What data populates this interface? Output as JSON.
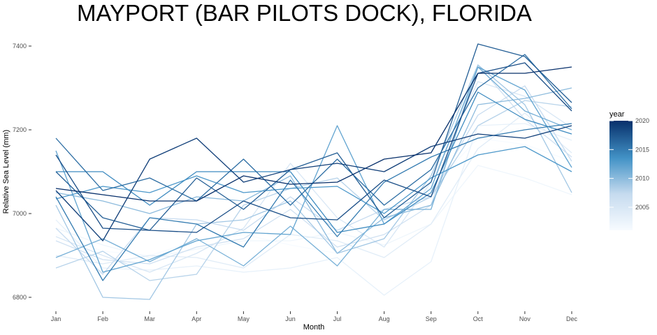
{
  "chart_data": {
    "type": "line",
    "title": "MAYPORT (BAR PILOTS DOCK), FLORIDA",
    "xlabel": "Month",
    "ylabel": "Relative Sea Level (mm)",
    "categories": [
      "Jan",
      "Feb",
      "Mar",
      "Apr",
      "May",
      "Jun",
      "Jul",
      "Aug",
      "Sep",
      "Oct",
      "Nov",
      "Dec"
    ],
    "ylim": [
      6790,
      7415
    ],
    "yticks": [
      6800,
      7000,
      7200,
      7400
    ],
    "grid": false,
    "legend": {
      "title": "year",
      "placement": "right",
      "type": "colorbar",
      "range": [
        2001,
        2020
      ],
      "ticks": [
        2005,
        2010,
        2015,
        2020
      ],
      "low_color": "#f7fbff",
      "high_color": "#08306b"
    },
    "series": [
      {
        "year": 2001,
        "values": [
          6950,
          6910,
          6900,
          6935,
          6950,
          6925,
          6905,
          6985,
          7060,
          7180,
          7165,
          7125
        ]
      },
      {
        "year": 2002,
        "values": [
          6965,
          6925,
          6895,
          6915,
          6935,
          6935,
          6955,
          6925,
          6975,
          7115,
          7085,
          7045
        ]
      },
      {
        "year": 2003,
        "values": [
          6985,
          6870,
          6865,
          6875,
          6860,
          6870,
          6895,
          6805,
          6885,
          7210,
          7215,
          7175
        ]
      },
      {
        "year": 2004,
        "values": [
          6900,
          6880,
          6900,
          6895,
          6870,
          6950,
          6935,
          6895,
          6975,
          7155,
          7240,
          7145
        ]
      },
      {
        "year": 2005,
        "values": [
          6945,
          6900,
          6860,
          6905,
          6965,
          7120,
          6990,
          6920,
          7075,
          7315,
          7280,
          7205
        ]
      },
      {
        "year": 2006,
        "values": [
          6935,
          6890,
          6880,
          6920,
          6940,
          7010,
          6920,
          6950,
          7020,
          7355,
          7225,
          7135
        ]
      },
      {
        "year": 2007,
        "values": [
          6965,
          6855,
          6990,
          6985,
          6960,
          7040,
          6960,
          7010,
          7040,
          7235,
          7305,
          7125
        ]
      },
      {
        "year": 2008,
        "values": [
          6870,
          6910,
          6840,
          6855,
          7020,
          7060,
          7085,
          6985,
          7040,
          7210,
          7270,
          7255
        ]
      },
      {
        "year": 2009,
        "values": [
          7020,
          6800,
          6795,
          6975,
          6985,
          7030,
          6905,
          6940,
          7090,
          7355,
          7260,
          7050
        ]
      },
      {
        "year": 2010,
        "values": [
          7050,
          7030,
          7000,
          7040,
          7030,
          7090,
          6905,
          6990,
          7020,
          7260,
          7275,
          7300
        ]
      },
      {
        "year": 2011,
        "values": [
          6895,
          6940,
          6885,
          6940,
          6875,
          6970,
          6875,
          7010,
          7010,
          7350,
          7245,
          7200
        ]
      },
      {
        "year": 2012,
        "values": [
          7150,
          6860,
          6890,
          6935,
          6955,
          6950,
          7210,
          6975,
          7060,
          7350,
          7295,
          7110
        ]
      },
      {
        "year": 2013,
        "values": [
          7035,
          7065,
          7050,
          7090,
          7050,
          7060,
          7065,
          7000,
          7085,
          7140,
          7160,
          7100
        ]
      },
      {
        "year": 2014,
        "values": [
          7100,
          7100,
          7020,
          7100,
          7100,
          7100,
          6955,
          6975,
          7050,
          7290,
          7225,
          7190
        ]
      },
      {
        "year": 2015,
        "values": [
          7040,
          6840,
          6990,
          6975,
          6920,
          7080,
          6945,
          7075,
          7135,
          7180,
          7200,
          7215
        ]
      },
      {
        "year": 2016,
        "values": [
          7180,
          7055,
          7085,
          7030,
          7130,
          7020,
          7130,
          7020,
          7105,
          7300,
          7380,
          7250
        ]
      },
      {
        "year": 2017,
        "values": [
          7100,
          6990,
          6960,
          7085,
          7010,
          7105,
          7145,
          6990,
          7075,
          7405,
          7375,
          7265
        ]
      },
      {
        "year": 2018,
        "values": [
          7140,
          6965,
          6960,
          6955,
          7030,
          6990,
          6985,
          7080,
          7040,
          7335,
          7360,
          7245
        ]
      },
      {
        "year": 2019,
        "values": [
          7055,
          6935,
          7130,
          7180,
          7075,
          7105,
          7120,
          7100,
          7160,
          7190,
          7180,
          7210
        ]
      },
      {
        "year": 2020,
        "values": [
          7060,
          7045,
          7030,
          7030,
          7090,
          7070,
          7075,
          7130,
          7145,
          7335,
          7335,
          7350
        ]
      }
    ]
  }
}
